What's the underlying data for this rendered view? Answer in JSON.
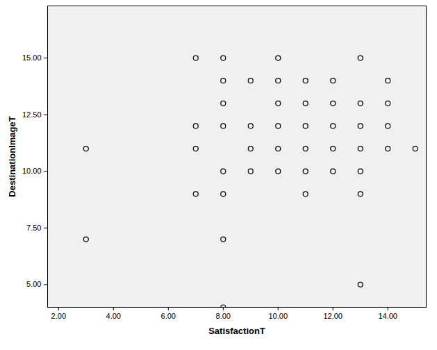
{
  "chart_data": {
    "type": "scatter",
    "x_label": "SatisfactionT",
    "y_label": "DestinationImageT",
    "x": [
      7,
      8,
      10,
      13,
      8,
      9,
      10,
      11,
      12,
      14,
      8,
      10,
      11,
      12,
      13,
      14,
      7,
      8,
      9,
      10,
      11,
      12,
      13,
      14,
      3,
      7,
      9,
      10,
      11,
      12,
      13,
      14,
      15,
      8,
      9,
      10,
      11,
      12,
      13,
      7,
      8,
      11,
      13,
      3,
      8,
      13,
      8
    ],
    "y": [
      15,
      15,
      15,
      15,
      14,
      14,
      14,
      14,
      14,
      14,
      13,
      13,
      13,
      13,
      13,
      13,
      12,
      12,
      12,
      12,
      12,
      12,
      12,
      12,
      11,
      11,
      11,
      11,
      11,
      11,
      11,
      11,
      11,
      10,
      10,
      10,
      10,
      10,
      10,
      9,
      9,
      9,
      9,
      7,
      7,
      5,
      4
    ],
    "xlim": [
      1.6,
      15.4
    ],
    "ylim": [
      4,
      17.3
    ],
    "xticks": [
      {
        "value": 2,
        "label": "2.00"
      },
      {
        "value": 4,
        "label": "4.00"
      },
      {
        "value": 6,
        "label": "6.00"
      },
      {
        "value": 8,
        "label": "8.00"
      },
      {
        "value": 10,
        "label": "10.00"
      },
      {
        "value": 12,
        "label": "12.00"
      },
      {
        "value": 14,
        "label": "14.00"
      }
    ],
    "yticks": [
      {
        "value": 5,
        "label": "5.00"
      },
      {
        "value": 7.5,
        "label": "7.50"
      },
      {
        "value": 10,
        "label": "10.00"
      },
      {
        "value": 12.5,
        "label": "12.50"
      },
      {
        "value": 15,
        "label": "15.00"
      }
    ],
    "color": "#000000",
    "marker": "circle",
    "grid": false
  }
}
